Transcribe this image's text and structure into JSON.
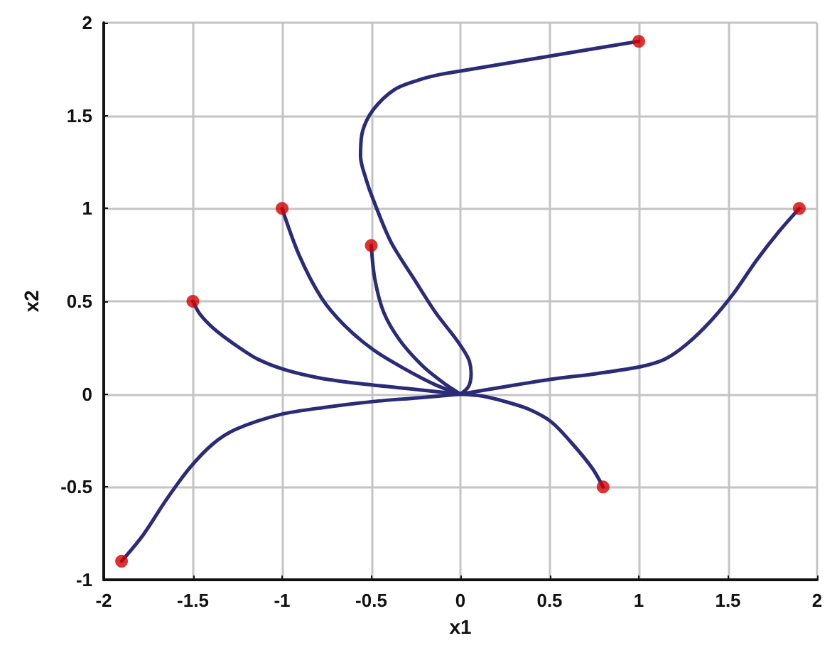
{
  "chart_data": {
    "type": "line",
    "xlabel": "x1",
    "ylabel": "x2",
    "xlim": [
      -2,
      2
    ],
    "xticks": [
      -2,
      -1.5,
      -1,
      -0.5,
      0,
      0.5,
      1,
      1.5,
      2
    ],
    "ylim": [
      -1,
      2
    ],
    "yticks": [
      -1,
      -0.5,
      0,
      0.5,
      1,
      1.5,
      2
    ],
    "grid": true,
    "series": [
      {
        "color": "#2b2b78",
        "x": [
          1,
          0.75,
          0.5,
          0.25,
          0,
          -0.12,
          -0.24,
          -0.37,
          -0.49,
          -0.55,
          -0.56,
          -0.53,
          -0.49,
          -0.39,
          -0.26,
          -0.14,
          -0.02,
          0.045,
          0.06,
          0.045,
          0
        ],
        "values": [
          1.9,
          1.86,
          1.82,
          1.78,
          1.74,
          1.72,
          1.69,
          1.64,
          1.53,
          1.41,
          1.28,
          1.16,
          1.05,
          0.82,
          0.62,
          0.44,
          0.29,
          0.19,
          0.11,
          0.04,
          0
        ]
      },
      {
        "color": "#2b2b78",
        "x": [
          1.9,
          1.79,
          1.66,
          1.53,
          1.4,
          1.27,
          1.15,
          1.02,
          0.76,
          0.51,
          0.25,
          0
        ],
        "values": [
          1,
          0.88,
          0.72,
          0.54,
          0.39,
          0.27,
          0.19,
          0.15,
          0.11,
          0.08,
          0.04,
          0
        ]
      },
      {
        "color": "#2b2b78",
        "x": [
          -1,
          -0.905,
          -0.78,
          -0.65,
          -0.49,
          -0.32,
          -0.14,
          0
        ],
        "values": [
          1,
          0.75,
          0.52,
          0.37,
          0.24,
          0.14,
          0.05,
          0
        ]
      },
      {
        "color": "#2b2b78",
        "x": [
          -0.5,
          -0.48,
          -0.43,
          -0.34,
          -0.21,
          -0.08,
          0
        ],
        "values": [
          0.8,
          0.62,
          0.44,
          0.29,
          0.15,
          0.05,
          0
        ]
      },
      {
        "color": "#2b2b78",
        "x": [
          -1.5,
          -1.46,
          -1.38,
          -1.27,
          -1.14,
          -0.98,
          -0.78,
          -0.55,
          -0.3,
          0
        ],
        "values": [
          0.5,
          0.43,
          0.35,
          0.27,
          0.19,
          0.13,
          0.085,
          0.055,
          0.03,
          0
        ]
      },
      {
        "color": "#2b2b78",
        "x": [
          -1.9,
          -1.78,
          -1.65,
          -1.52,
          -1.39,
          -1.26,
          -1.01,
          -0.75,
          -0.49,
          -0.24,
          0
        ],
        "values": [
          -0.9,
          -0.76,
          -0.57,
          -0.4,
          -0.27,
          -0.19,
          -0.11,
          -0.07,
          -0.04,
          -0.02,
          0
        ]
      },
      {
        "color": "#2b2b78",
        "x": [
          0.8,
          0.74,
          0.63,
          0.51,
          0.38,
          0.25,
          0.12,
          0
        ],
        "values": [
          -0.5,
          -0.4,
          -0.27,
          -0.15,
          -0.08,
          -0.04,
          -0.01,
          0
        ]
      },
      {
        "type": "scatter",
        "marker": "circle",
        "color": "#d40000",
        "x": [
          1,
          1.9,
          -1,
          -0.5,
          -1.5,
          -1.9,
          0.8
        ],
        "values": [
          1.9,
          1,
          1,
          0.8,
          0.5,
          -0.9,
          -0.5
        ]
      }
    ]
  }
}
